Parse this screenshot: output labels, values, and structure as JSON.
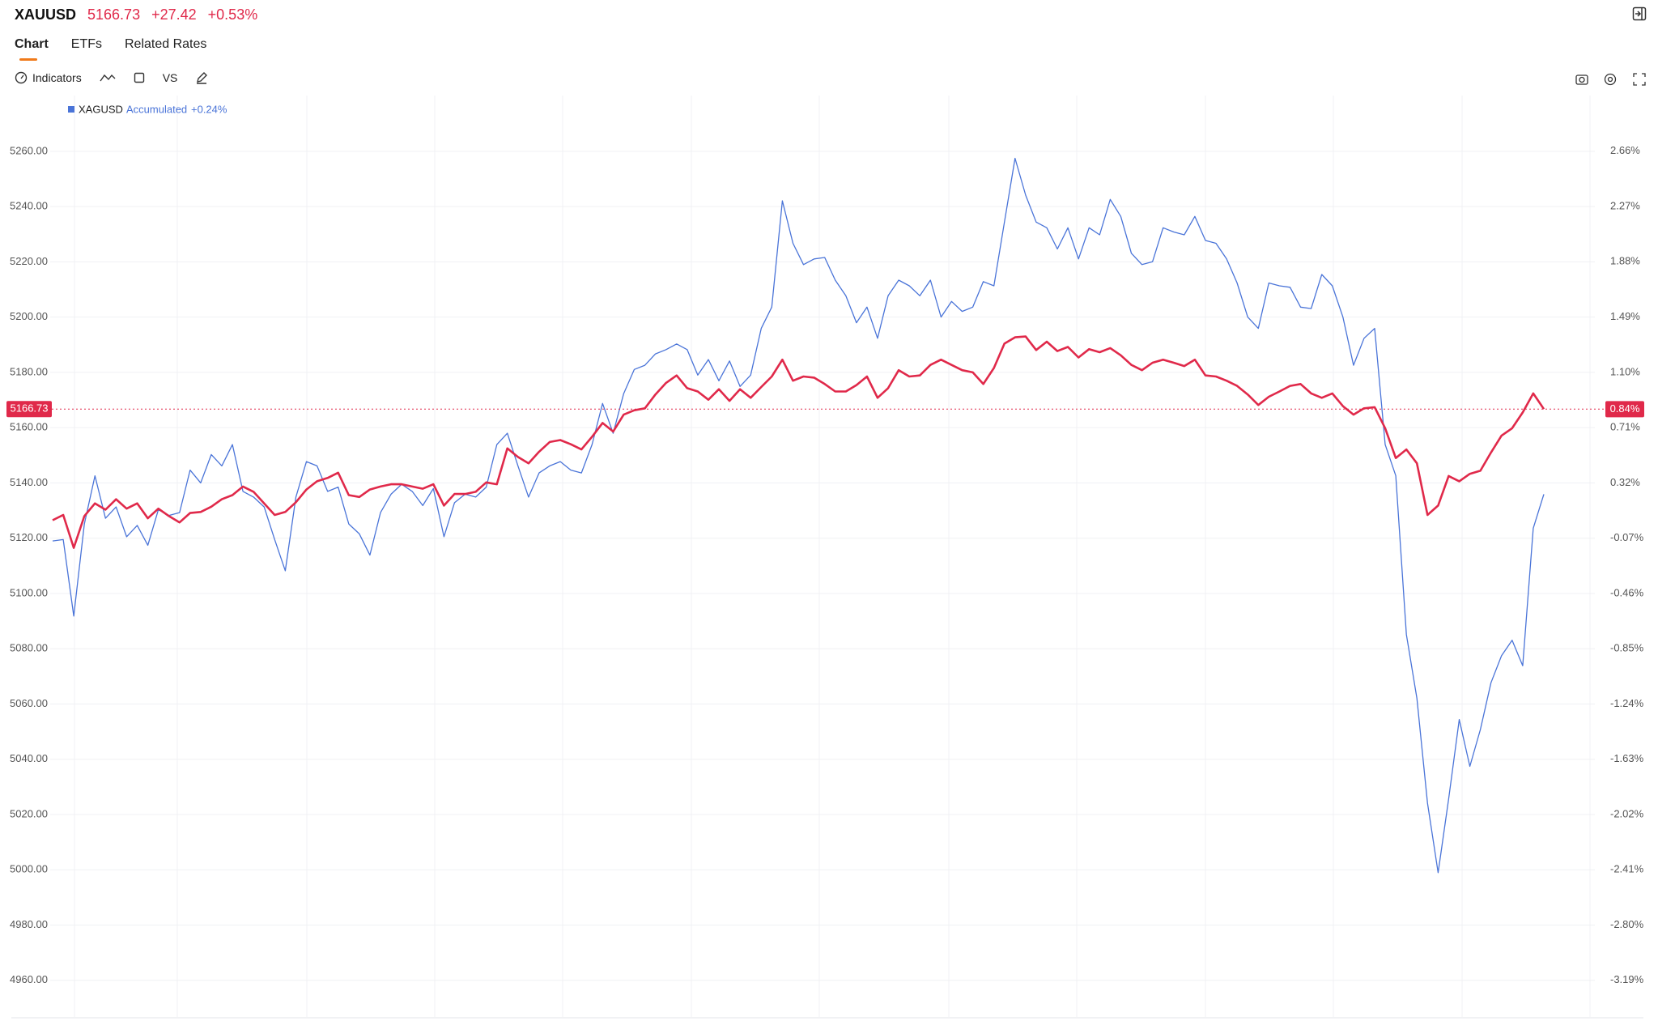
{
  "header": {
    "symbol": "XAUUSD",
    "change": "+27.42",
    "change_pct": "+0.53%"
  },
  "tabs": [
    "Chart",
    "ETFs",
    "Related Rates"
  ],
  "toolbar": {
    "indicators": "Indicators",
    "compare": "VS"
  },
  "chart_data": {
    "type": "line",
    "current_value": 5166.73,
    "current_pct": {
      "value": 0.84,
      "label": "0.84%"
    },
    "legend_mode": "Accumulated",
    "legend_value": "+0.24%",
    "series": [
      {
        "name": "XAUUSD",
        "color": "#e0294a",
        "values": [
          5126.5,
          5128.4,
          5116.5,
          5128.0,
          5132.6,
          5130.3,
          5134.1,
          5130.7,
          5132.6,
          5127.2,
          5130.7,
          5128.0,
          5125.7,
          5129.1,
          5129.5,
          5131.4,
          5134.1,
          5135.6,
          5138.7,
          5136.8,
          5132.6,
          5128.4,
          5129.5,
          5133.0,
          5137.6,
          5140.6,
          5141.8,
          5143.7,
          5135.6,
          5134.9,
          5137.6,
          5138.7,
          5139.5,
          5139.5,
          5138.7,
          5137.9,
          5139.5,
          5131.8,
          5136.0,
          5136.0,
          5136.8,
          5140.2,
          5139.5,
          5152.5,
          5149.4,
          5147.1,
          5151.3,
          5154.8,
          5155.5,
          5154.0,
          5152.1,
          5156.7,
          5161.7,
          5158.6,
          5164.7,
          5166.3,
          5167.0,
          5172.0,
          5176.2,
          5178.9,
          5174.3,
          5173.1,
          5170.1,
          5173.9,
          5169.7,
          5173.9,
          5170.8,
          5174.7,
          5178.5,
          5184.6,
          5177.0,
          5178.5,
          5178.1,
          5175.8,
          5173.1,
          5173.1,
          5175.4,
          5178.5,
          5170.8,
          5174.3,
          5180.8,
          5178.5,
          5178.9,
          5182.7,
          5184.6,
          5182.7,
          5180.8,
          5180.0,
          5175.8,
          5181.6,
          5190.4,
          5192.7,
          5193.0,
          5188.1,
          5191.1,
          5187.7,
          5189.2,
          5185.4,
          5188.4,
          5187.3,
          5188.8,
          5186.2,
          5182.7,
          5180.8,
          5183.5,
          5184.6,
          5183.5,
          5182.3,
          5184.6,
          5178.9,
          5178.5,
          5177.0,
          5175.1,
          5172.0,
          5168.2,
          5171.2,
          5173.1,
          5175.1,
          5175.8,
          5172.4,
          5170.8,
          5172.4,
          5167.8,
          5164.7,
          5167.0,
          5167.4,
          5159.8,
          5149.0,
          5152.1,
          5147.1,
          5128.4,
          5131.8,
          5142.5,
          5140.6,
          5143.3,
          5144.4,
          5151.0,
          5157.1,
          5159.8,
          5165.5,
          5172.4,
          5166.73
        ]
      },
      {
        "name": "XAGUSD",
        "color": "#4a74d8",
        "axis": "y2",
        "values": [
          -0.09,
          -0.08,
          -0.62,
          0.03,
          0.37,
          0.07,
          0.15,
          -0.06,
          0.02,
          -0.12,
          0.13,
          0.09,
          0.11,
          0.41,
          0.32,
          0.52,
          0.44,
          0.59,
          0.26,
          0.22,
          0.15,
          -0.08,
          -0.3,
          0.22,
          0.47,
          0.44,
          0.26,
          0.29,
          0.03,
          -0.04,
          -0.19,
          0.11,
          0.24,
          0.31,
          0.26,
          0.16,
          0.28,
          -0.06,
          0.18,
          0.24,
          0.22,
          0.29,
          0.59,
          0.67,
          0.44,
          0.22,
          0.39,
          0.44,
          0.47,
          0.41,
          0.39,
          0.59,
          0.88,
          0.67,
          0.95,
          1.12,
          1.15,
          1.23,
          1.26,
          1.3,
          1.26,
          1.08,
          1.19,
          1.04,
          1.18,
          1.0,
          1.08,
          1.41,
          1.56,
          2.31,
          2.01,
          1.86,
          1.9,
          1.91,
          1.75,
          1.64,
          1.45,
          1.56,
          1.34,
          1.64,
          1.75,
          1.71,
          1.64,
          1.75,
          1.49,
          1.6,
          1.53,
          1.56,
          1.74,
          1.71,
          2.16,
          2.61,
          2.35,
          2.16,
          2.12,
          1.97,
          2.12,
          1.9,
          2.12,
          2.07,
          2.32,
          2.2,
          1.94,
          1.86,
          1.88,
          2.12,
          2.09,
          2.07,
          2.2,
          2.03,
          2.01,
          1.9,
          1.73,
          1.49,
          1.41,
          1.73,
          1.71,
          1.7,
          1.56,
          1.55,
          1.79,
          1.71,
          1.49,
          1.15,
          1.34,
          1.41,
          0.59,
          0.37,
          -0.75,
          -1.2,
          -1.94,
          -2.43,
          -1.91,
          -1.35,
          -1.68,
          -1.42,
          -1.09,
          -0.9,
          -0.79,
          -0.97,
          0.0,
          0.24
        ]
      }
    ],
    "ylim": [
      4946.6,
      5280.3
    ],
    "yticks": [
      {
        "value": 4960,
        "label": "4960.00"
      },
      {
        "value": 4980,
        "label": "4980.00"
      },
      {
        "value": 5000,
        "label": "5000.00"
      },
      {
        "value": 5020,
        "label": "5020.00"
      },
      {
        "value": 5040,
        "label": "5040.00"
      },
      {
        "value": 5060,
        "label": "5060.00"
      },
      {
        "value": 5080,
        "label": "5080.00"
      },
      {
        "value": 5100,
        "label": "5100.00"
      },
      {
        "value": 5120,
        "label": "5120.00"
      },
      {
        "value": 5140,
        "label": "5140.00"
      },
      {
        "value": 5160,
        "label": "5160.00"
      },
      {
        "value": 5180,
        "label": "5180.00"
      },
      {
        "value": 5200,
        "label": "5200.00"
      },
      {
        "value": 5220,
        "label": "5220.00"
      },
      {
        "value": 5240,
        "label": "5240.00"
      },
      {
        "value": 5260,
        "label": "5260.00"
      }
    ],
    "y2lim": [
      -3.451,
      3.055
    ],
    "y2ticks": [
      {
        "value": -3.19,
        "label": "-3.19%"
      },
      {
        "value": -2.8,
        "label": "-2.80%"
      },
      {
        "value": -2.41,
        "label": "-2.41%"
      },
      {
        "value": -2.02,
        "label": "-2.02%"
      },
      {
        "value": -1.63,
        "label": "-1.63%"
      },
      {
        "value": -1.24,
        "label": "-1.24%"
      },
      {
        "value": -0.85,
        "label": "-0.85%"
      },
      {
        "value": -0.46,
        "label": "-0.46%"
      },
      {
        "value": -0.07,
        "label": "-0.07%"
      },
      {
        "value": 0.32,
        "label": "0.32%"
      },
      {
        "value": 0.71,
        "label": "0.71%"
      },
      {
        "value": 1.1,
        "label": "1.10%"
      },
      {
        "value": 1.49,
        "label": "1.49%"
      },
      {
        "value": 1.88,
        "label": "1.88%"
      },
      {
        "value": 2.27,
        "label": "2.27%"
      },
      {
        "value": 2.66,
        "label": "2.66%"
      }
    ],
    "grid": true
  }
}
